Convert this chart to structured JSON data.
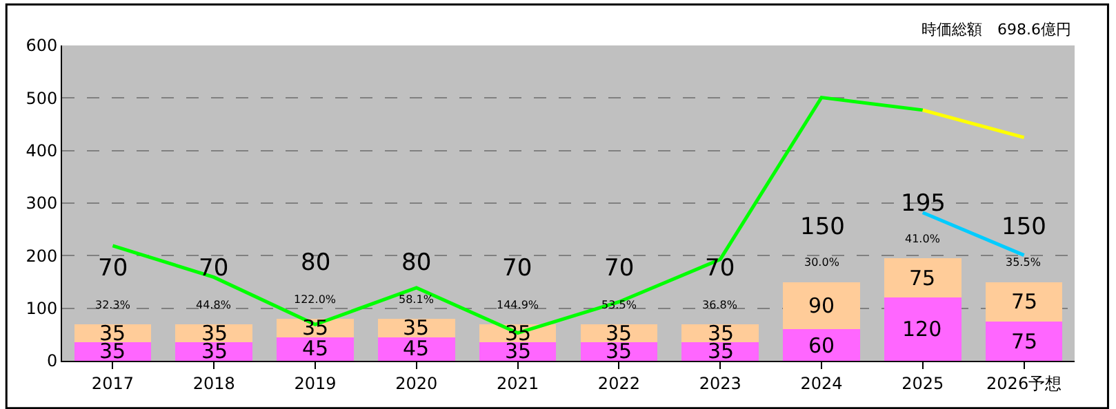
{
  "chart_data": {
    "type": "bar",
    "stacked": true,
    "categories": [
      "2017",
      "2018",
      "2019",
      "2020",
      "2021",
      "2022",
      "2023",
      "2024",
      "2025",
      "2026予想"
    ],
    "series": [
      {
        "color": "#ff66ff",
        "values": [
          35,
          35,
          45,
          45,
          35,
          35,
          35,
          60,
          120,
          75
        ],
        "value_labels": [
          "35",
          "35",
          "45",
          "45",
          "35",
          "35",
          "35",
          "60",
          "120",
          "75"
        ]
      },
      {
        "color": "#ffcc99",
        "values": [
          35,
          35,
          35,
          35,
          35,
          35,
          35,
          90,
          75,
          75
        ],
        "value_labels": [
          "35",
          "35",
          "35",
          "35",
          "35",
          "35",
          "35",
          "90",
          "75",
          "75"
        ]
      },
      {
        "type": "line",
        "color": "#00ff00",
        "values": [
          219,
          159,
          69,
          139,
          53,
          112,
          193,
          501,
          477,
          null
        ]
      },
      {
        "type": "line",
        "color": "#ffff00",
        "values": [
          null,
          null,
          null,
          null,
          null,
          null,
          null,
          null,
          477,
          425
        ]
      },
      {
        "type": "line",
        "color": "#00ccff",
        "values": [
          null,
          null,
          null,
          null,
          null,
          null,
          null,
          null,
          282,
          201
        ]
      }
    ],
    "totals": [
      "70",
      "70",
      "80",
      "80",
      "70",
      "70",
      "70",
      "150",
      "195",
      "150"
    ],
    "annotations": [
      "時価総額　698.6億円",
      "32.3%",
      "44.8%",
      "122.0%",
      "58.1%",
      "144.9%",
      "53.5%",
      "36.8%",
      "30.0%",
      "41.0%",
      "35.5%"
    ],
    "ylim": [
      0,
      600
    ],
    "yticks": [
      0,
      100,
      200,
      300,
      400,
      500,
      600
    ],
    "grid": "y"
  }
}
